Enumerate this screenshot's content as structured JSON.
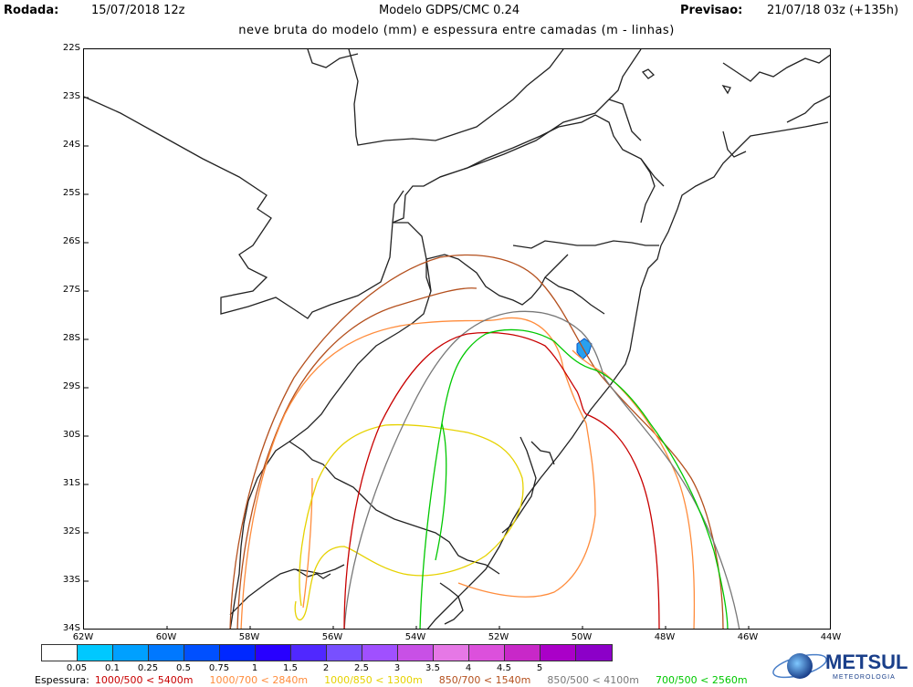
{
  "header": {
    "run_label": "Rodada:",
    "run_value": "15/07/2018 12z",
    "model_title": "Modelo GDPS/CMC 0.24",
    "forecast_label": "Previsao:",
    "forecast_value": "21/07/18 03z (+135h)",
    "subtitle": "neve bruta do modelo (mm) e espessura entre camadas (m - linhas)"
  },
  "axes": {
    "lat_labels": [
      "22S",
      "23S",
      "24S",
      "25S",
      "26S",
      "27S",
      "28S",
      "29S",
      "30S",
      "31S",
      "32S",
      "33S",
      "34S"
    ],
    "lon_labels": [
      "62W",
      "60W",
      "58W",
      "56W",
      "54W",
      "52W",
      "50W",
      "48W",
      "46W",
      "44W"
    ]
  },
  "colorbar": {
    "colors": [
      "#ffffff",
      "#00c8ff",
      "#00a0ff",
      "#0078ff",
      "#0050ff",
      "#0028ff",
      "#2800ff",
      "#5028ff",
      "#7850ff",
      "#a050ff",
      "#c850e6",
      "#e678e6",
      "#dc50dc",
      "#c828c8",
      "#aa00c8",
      "#8c00c8"
    ],
    "labels": [
      "0.05",
      "0.1",
      "0.25",
      "0.5",
      "0.75",
      "1",
      "1.5",
      "2",
      "2.5",
      "3",
      "3.5",
      "4",
      "4.5",
      "5"
    ]
  },
  "legend": {
    "title": "Espessura:",
    "items": [
      {
        "text": "1000/500 < 5400m",
        "color": "#c80000"
      },
      {
        "text": "1000/700 < 2840m",
        "color": "#ff8c3c"
      },
      {
        "text": "1000/850 < 1300m",
        "color": "#e6d200"
      },
      {
        "text": "850/700 < 1540m",
        "color": "#b4501e"
      },
      {
        "text": "850/500 < 4100m",
        "color": "#787878"
      },
      {
        "text": "700/500 < 2560m",
        "color": "#00c800"
      }
    ]
  },
  "brand": {
    "name": "METSUL",
    "tagline": "METEOROLOGIA"
  }
}
